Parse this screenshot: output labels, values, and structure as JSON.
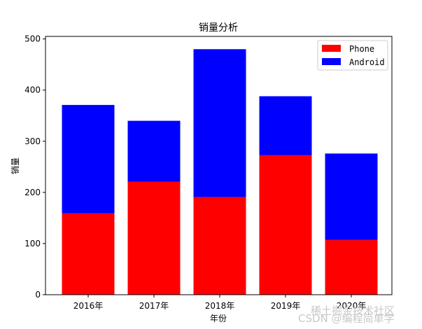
{
  "chart_data": {
    "type": "bar",
    "stacked": true,
    "title": "销量分析",
    "xlabel": "年份",
    "ylabel": "销量",
    "categories": [
      "2016年",
      "2017年",
      "2018年",
      "2019年",
      "2020年"
    ],
    "series": [
      {
        "name": "Phone",
        "color": "#ff0000",
        "values": [
          159,
          221,
          191,
          273,
          107
        ]
      },
      {
        "name": "Android",
        "color": "#0000ff",
        "values": [
          212,
          119,
          289,
          115,
          169
        ]
      }
    ],
    "ylim": [
      0,
      505
    ],
    "yticks": [
      0,
      100,
      200,
      300,
      400,
      500
    ],
    "legend_position": "top-right",
    "grid": false
  },
  "watermark": {
    "line1": "稀土掘金技术社区",
    "line2": "CSDN @编程简单学"
  }
}
